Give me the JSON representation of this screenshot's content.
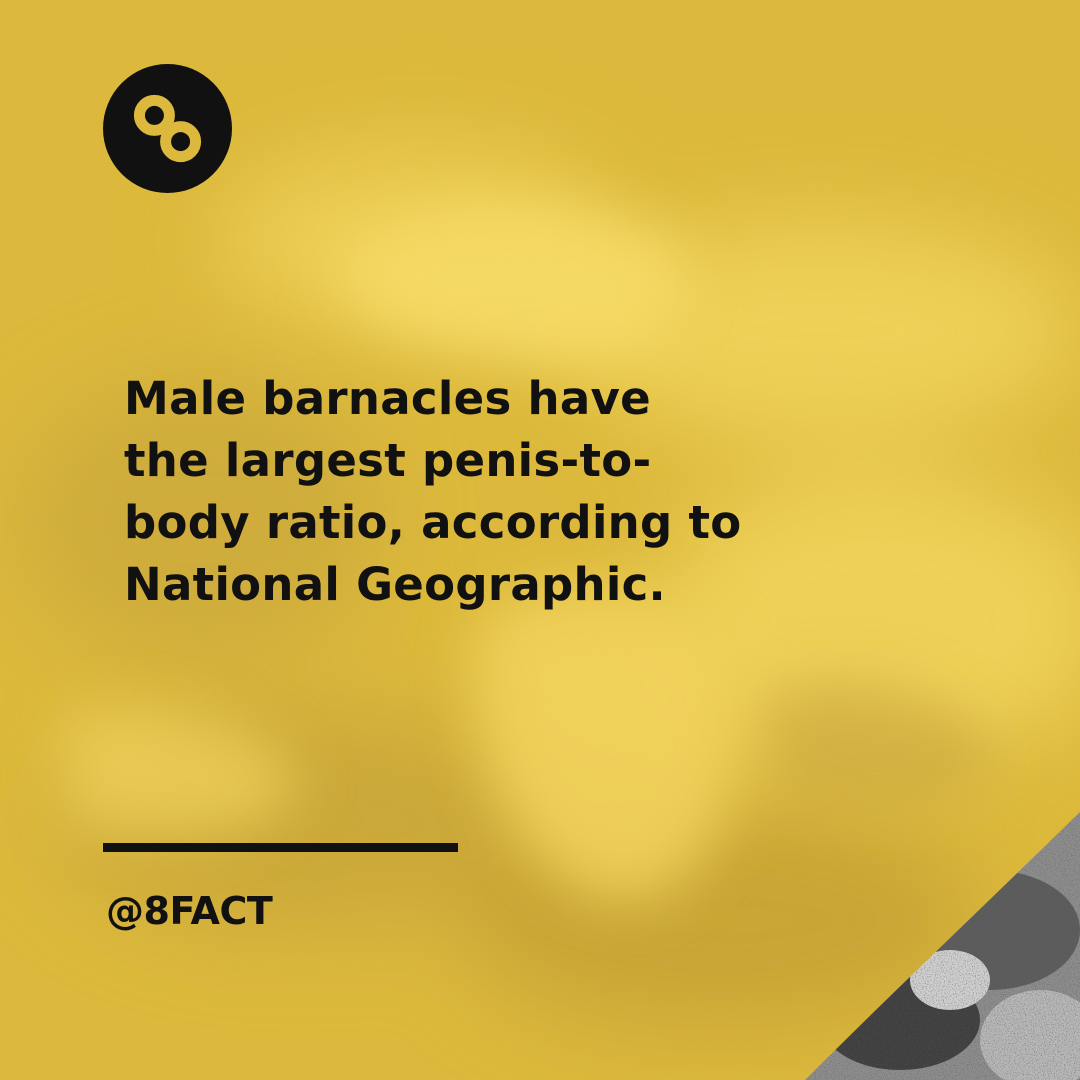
{
  "brand": {
    "logo_icon": "infinity-eight-logo-icon",
    "handle": "@8FACT"
  },
  "fact": {
    "lines": [
      "Male barnacles have",
      "the largest penis-to-",
      "body ratio, according to",
      "National Geographic."
    ]
  },
  "colors": {
    "background_yellow": "#dcb93c",
    "text": "#111111",
    "logo_fill": "#111111",
    "logo_symbol": "#dcb93c"
  }
}
